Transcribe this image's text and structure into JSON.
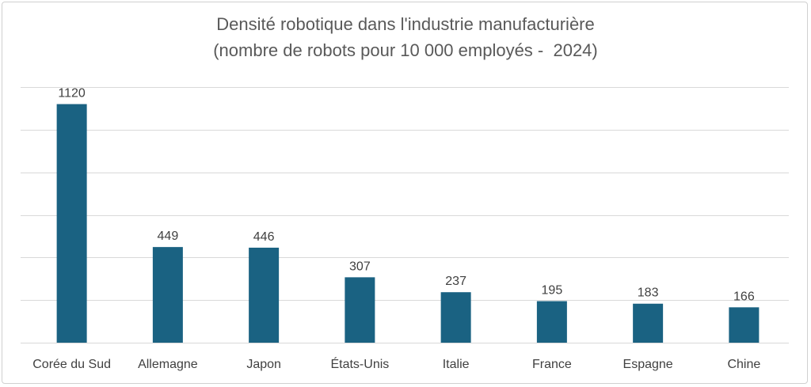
{
  "chart_data": {
    "type": "bar",
    "title_line1": "Densité robotique dans l'industrie manufacturière",
    "title_line2": "(nombre de robots pour 10 000 employés -  2024)",
    "categories": [
      "Corée du Sud",
      "Allemagne",
      "Japon",
      "États-Unis",
      "Italie",
      "France",
      "Espagne",
      "Chine"
    ],
    "values": [
      1120,
      449,
      446,
      307,
      237,
      195,
      183,
      166
    ],
    "ylim": [
      0,
      1200
    ],
    "grid": true,
    "y_gridlines": [
      200,
      400,
      600,
      800,
      1000,
      1200
    ],
    "bar_color": "#1a6282",
    "grid_color": "#d9d9d9"
  }
}
